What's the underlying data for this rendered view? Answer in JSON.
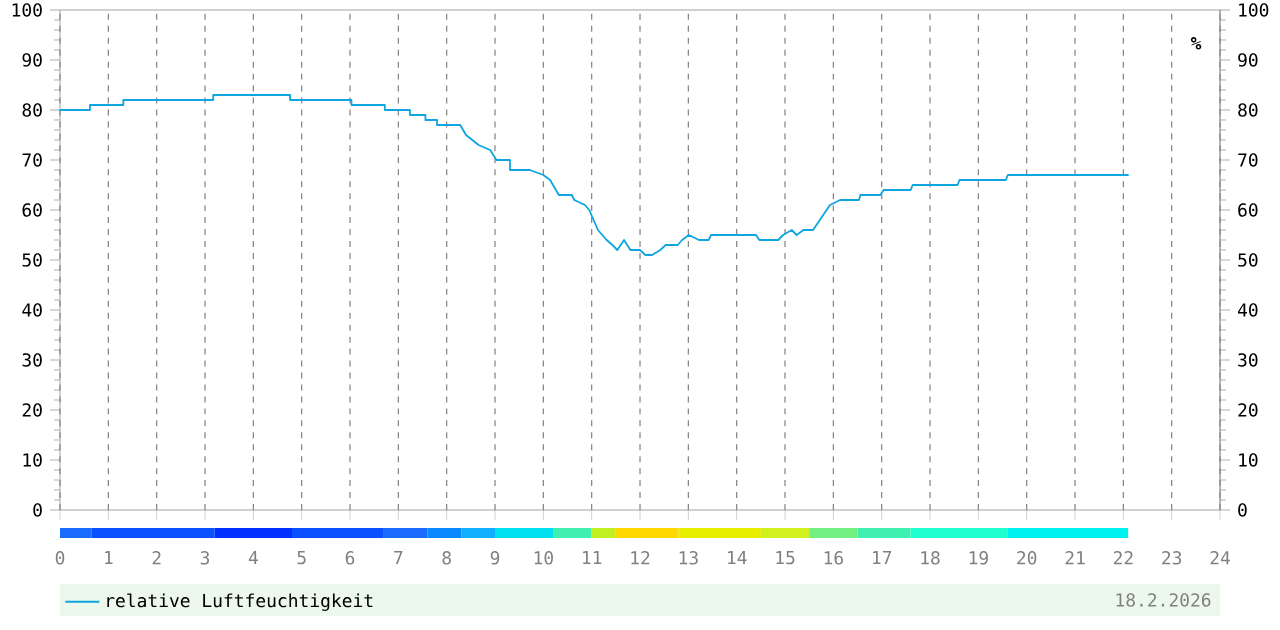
{
  "chart_data": {
    "type": "line",
    "xlim": [
      0,
      24
    ],
    "xticks": [
      0,
      1,
      2,
      3,
      4,
      5,
      6,
      7,
      8,
      9,
      10,
      11,
      12,
      13,
      14,
      15,
      16,
      17,
      18,
      19,
      20,
      21,
      22,
      23,
      24
    ],
    "ylim": [
      0,
      100
    ],
    "yticks": [
      0,
      10,
      20,
      30,
      40,
      50,
      60,
      70,
      80,
      90,
      100
    ],
    "y2lim": [
      0,
      100
    ],
    "y2ticks": [
      0,
      10,
      20,
      30,
      40,
      50,
      60,
      70,
      80,
      90,
      100
    ],
    "y2label": "%",
    "grid": "x",
    "legend": "bottom",
    "annotations": [
      "18.2.2026"
    ],
    "series": [
      {
        "name": "relative Luftfeuchtigkeit",
        "color": "#0ea5e0",
        "x": [
          0,
          0.62,
          0.62,
          1.31,
          1.31,
          3.17,
          3.17,
          4.76,
          4.76,
          6.03,
          6.03,
          6.72,
          6.72,
          7.24,
          7.24,
          7.56,
          7.56,
          7.8,
          7.8,
          8.28,
          8.4,
          8.66,
          8.9,
          9.03,
          9.31,
          9.31,
          9.72,
          10.0,
          10.14,
          10.32,
          10.59,
          10.64,
          10.86,
          10.95,
          11.13,
          11.31,
          11.43,
          11.53,
          11.67,
          11.8,
          12.0,
          12.11,
          12.25,
          12.42,
          12.53,
          12.78,
          12.87,
          13.01,
          13.22,
          13.42,
          13.47,
          14.4,
          14.47,
          14.86,
          14.96,
          15.14,
          15.24,
          15.38,
          15.58,
          15.72,
          15.93,
          16.14,
          16.53,
          16.56,
          16.97,
          17.04,
          17.6,
          17.64,
          18.57,
          18.61,
          19.57,
          19.61,
          22.11
        ],
        "values": [
          80,
          80,
          81,
          81,
          82,
          82,
          83,
          83,
          82,
          82,
          81,
          81,
          80,
          80,
          79,
          79,
          78,
          78,
          77,
          77,
          75,
          73,
          72,
          70,
          70,
          68,
          68,
          67,
          66,
          63,
          63,
          62,
          61,
          60,
          56,
          54,
          53,
          52,
          54,
          52,
          52,
          51,
          51,
          52,
          53,
          53,
          54,
          55,
          54,
          54,
          55,
          55,
          54,
          54,
          55,
          56,
          55,
          56,
          56,
          58,
          61,
          62,
          62,
          63,
          63,
          64,
          64,
          65,
          65,
          66,
          66,
          67,
          67
        ]
      }
    ]
  }
}
